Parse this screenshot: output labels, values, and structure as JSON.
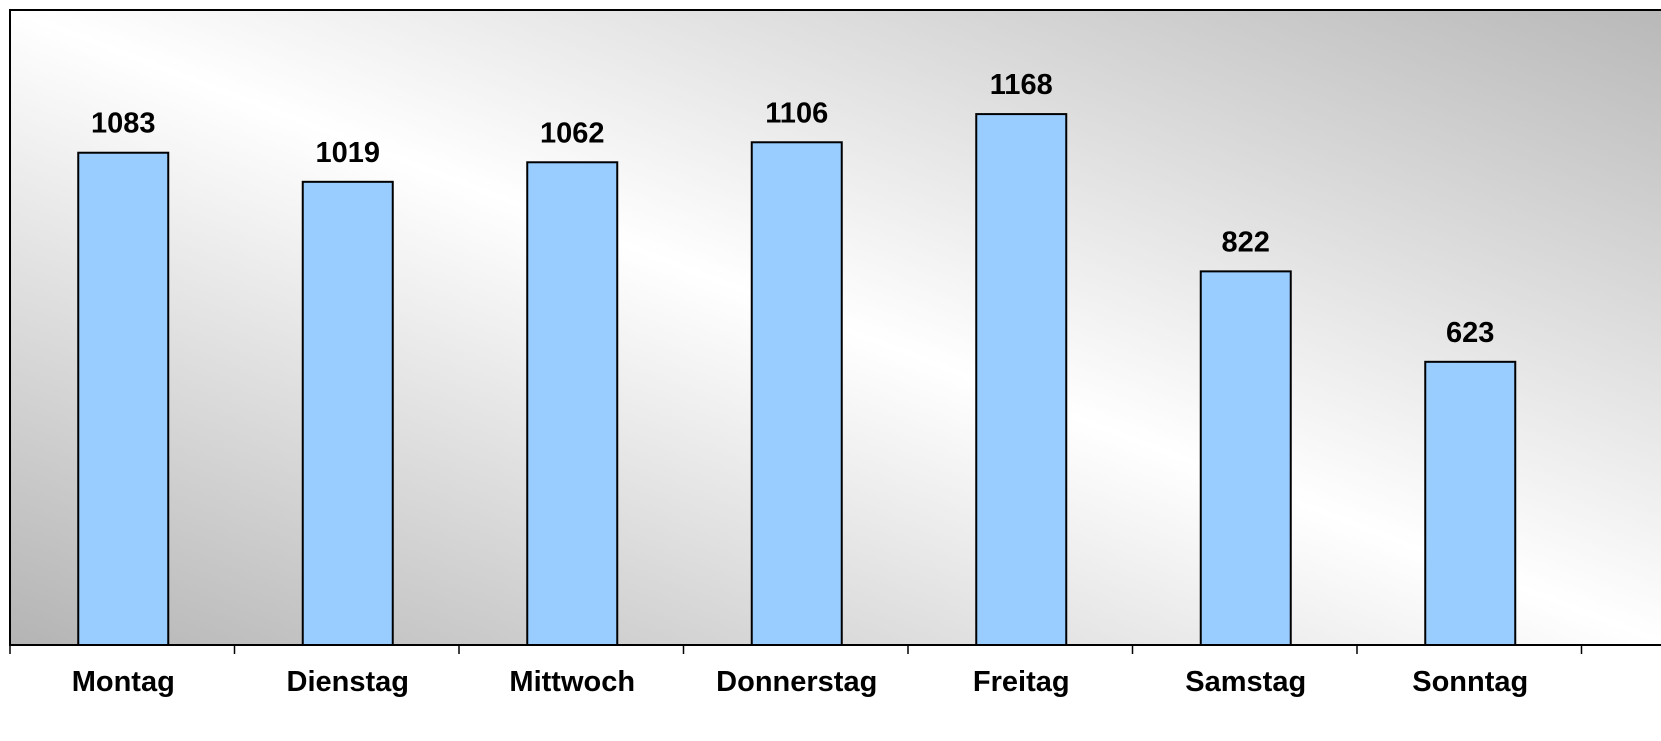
{
  "chart_data": {
    "type": "bar",
    "categories": [
      "Montag",
      "Dienstag",
      "Mittwoch",
      "Donnerstag",
      "Freitag",
      "Samstag",
      "Sonntag"
    ],
    "values": [
      1083,
      1019,
      1062,
      1106,
      1168,
      822,
      623
    ],
    "color": "#99ccff",
    "ylim": [
      0,
      1397
    ]
  }
}
